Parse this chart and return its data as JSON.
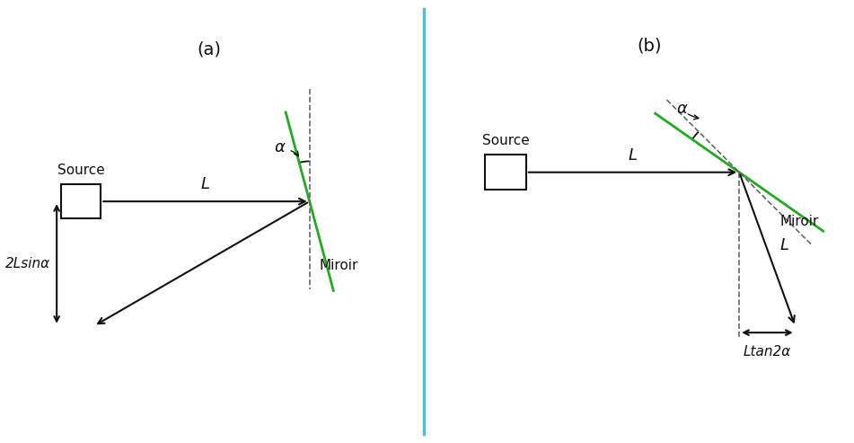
{
  "fig_width": 9.51,
  "fig_height": 4.93,
  "dpi": 100,
  "bg_color": "#ffffff",
  "divider_color": "#55bbdd",
  "label_a": "(a)",
  "label_b": "(b)",
  "source_label": "Source",
  "miroir_label": "Miroir",
  "L_label": "L",
  "alpha_label": "α",
  "twoLsinalpha_label": "2Lsinα",
  "Ltan2alpha_label": "Ltan2α",
  "green_color": "#22aa22",
  "black_color": "#111111",
  "dashed_color": "#666666",
  "alpha_deg_a": 15,
  "alpha_deg_b": 10
}
